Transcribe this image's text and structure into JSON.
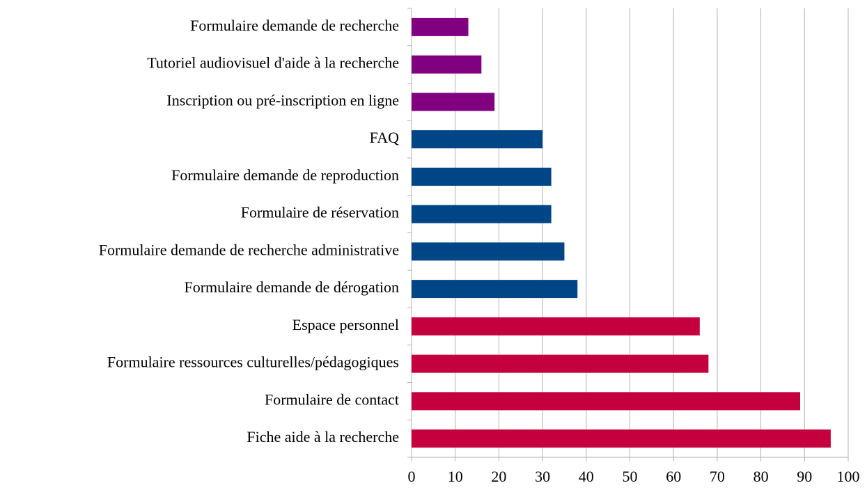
{
  "chart_data": {
    "type": "bar",
    "orientation": "horizontal",
    "categories": [
      "Formulaire demande de recherche",
      "Tutoriel audiovisuel d'aide à la recherche",
      "Inscription ou pré-inscription en ligne",
      "FAQ",
      "Formulaire demande de reproduction",
      "Formulaire de réservation",
      "Formulaire demande de recherche administrative",
      "Formulaire demande de dérogation",
      "Espace personnel",
      "Formulaire ressources culturelles/pédagogiques",
      "Formulaire de contact",
      "Fiche aide à la recherche"
    ],
    "values": [
      13,
      16,
      19,
      30,
      32,
      32,
      35,
      38,
      66,
      68,
      89,
      96
    ],
    "colors": [
      "#800080",
      "#800080",
      "#800080",
      "#004586",
      "#004586",
      "#004586",
      "#004586",
      "#004586",
      "#c5003e",
      "#c5003e",
      "#c5003e",
      "#c5003e"
    ],
    "xlim": [
      0,
      100
    ],
    "xticks": [
      0,
      10,
      20,
      30,
      40,
      50,
      60,
      70,
      80,
      90,
      100
    ],
    "grid": true
  }
}
